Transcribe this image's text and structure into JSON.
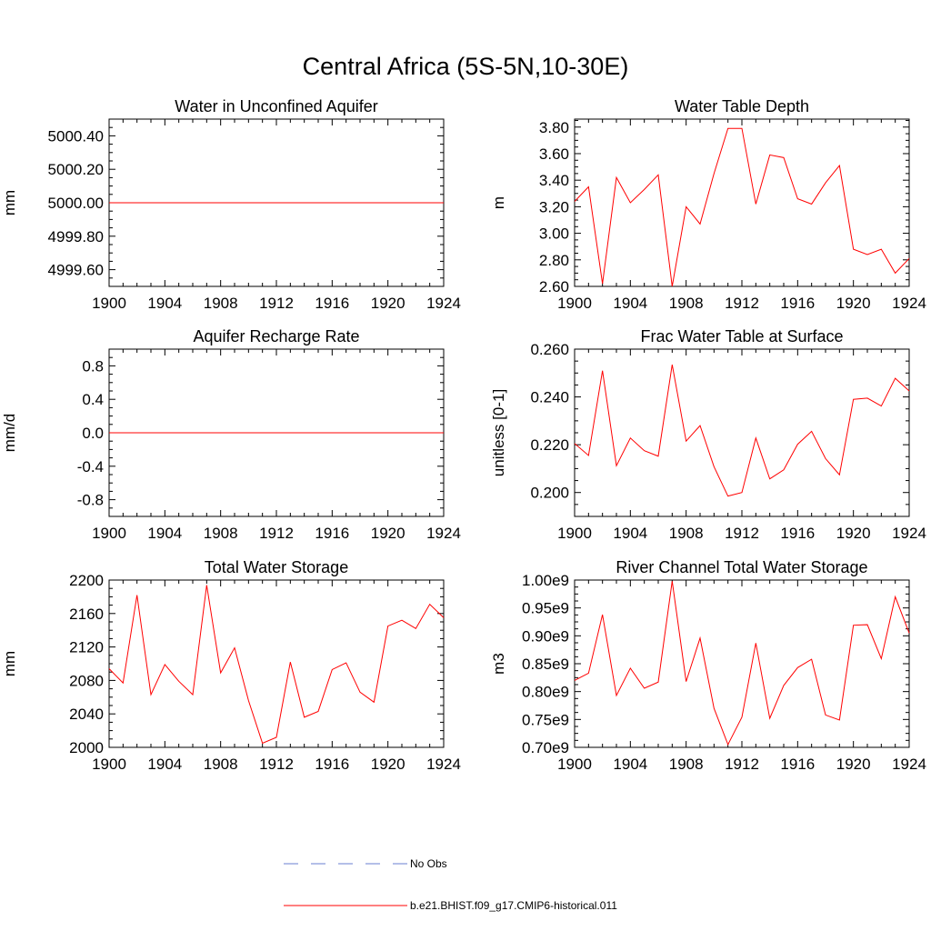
{
  "figure": {
    "title": "Central Africa (5S-5N,10-30E)",
    "series_color": "#ff0000",
    "noobs_color": "#6a7fd0"
  },
  "legend": {
    "entries": [
      {
        "label": "No Obs",
        "style": "dashed",
        "color": "#6a7fd0"
      },
      {
        "label": "b.e21.BHIST.f09_g17.CMIP6-historical.011",
        "style": "solid",
        "color": "#ff0000"
      }
    ]
  },
  "chart_data": [
    {
      "type": "line",
      "title": "Water in Unconfined Aquifer",
      "ylabel": "mm",
      "xlim": [
        1900,
        1924
      ],
      "ylim": [
        4999.5,
        5000.5
      ],
      "xticks": [
        1900,
        1904,
        1908,
        1912,
        1916,
        1920,
        1924
      ],
      "xtick_labels": [
        "1900",
        "1904",
        "1908",
        "1912",
        "1916",
        "1920",
        "1924"
      ],
      "yticks": [
        4999.6,
        4999.8,
        5000.0,
        5000.2,
        5000.4
      ],
      "ytick_labels": [
        "4999.60",
        "4999.80",
        "5000.00",
        "5000.20",
        "5000.40"
      ],
      "x": [
        1900,
        1901,
        1902,
        1903,
        1904,
        1905,
        1906,
        1907,
        1908,
        1909,
        1910,
        1911,
        1912,
        1913,
        1914,
        1915,
        1916,
        1917,
        1918,
        1919,
        1920,
        1921,
        1922,
        1923,
        1924
      ],
      "series": [
        {
          "values": [
            5000,
            5000,
            5000,
            5000,
            5000,
            5000,
            5000,
            5000,
            5000,
            5000,
            5000,
            5000,
            5000,
            5000,
            5000,
            5000,
            5000,
            5000,
            5000,
            5000,
            5000,
            5000,
            5000,
            5000,
            5000
          ]
        }
      ]
    },
    {
      "type": "line",
      "title": "Water Table Depth",
      "ylabel": "m",
      "xlim": [
        1900,
        1924
      ],
      "ylim": [
        2.6,
        3.86
      ],
      "xticks": [
        1900,
        1904,
        1908,
        1912,
        1916,
        1920,
        1924
      ],
      "xtick_labels": [
        "1900",
        "1904",
        "1908",
        "1912",
        "1916",
        "1920",
        "1924"
      ],
      "yticks": [
        2.6,
        2.8,
        3.0,
        3.2,
        3.4,
        3.6,
        3.8
      ],
      "ytick_labels": [
        "2.60",
        "2.80",
        "3.00",
        "3.20",
        "3.40",
        "3.60",
        "3.80"
      ],
      "x": [
        1900,
        1901,
        1902,
        1903,
        1904,
        1905,
        1906,
        1907,
        1908,
        1909,
        1910,
        1911,
        1912,
        1913,
        1914,
        1915,
        1916,
        1917,
        1918,
        1919,
        1920,
        1921,
        1922,
        1923,
        1924
      ],
      "series": [
        {
          "values": [
            3.24,
            3.35,
            2.62,
            3.42,
            3.23,
            3.33,
            3.44,
            2.6,
            3.2,
            3.07,
            3.45,
            3.79,
            3.79,
            3.22,
            3.59,
            3.57,
            3.26,
            3.22,
            3.38,
            3.51,
            2.88,
            2.84,
            2.88,
            2.7,
            2.81
          ]
        }
      ]
    },
    {
      "type": "line",
      "title": "Aquifer Recharge Rate",
      "ylabel": "mm/d",
      "xlim": [
        1900,
        1924
      ],
      "ylim": [
        -1.0,
        1.0
      ],
      "xticks": [
        1900,
        1904,
        1908,
        1912,
        1916,
        1920,
        1924
      ],
      "xtick_labels": [
        "1900",
        "1904",
        "1908",
        "1912",
        "1916",
        "1920",
        "1924"
      ],
      "yticks": [
        -0.8,
        -0.4,
        0.0,
        0.4,
        0.8
      ],
      "ytick_labels": [
        "-0.8",
        "-0.4",
        "0.0",
        "0.4",
        "0.8"
      ],
      "x": [
        1900,
        1901,
        1902,
        1903,
        1904,
        1905,
        1906,
        1907,
        1908,
        1909,
        1910,
        1911,
        1912,
        1913,
        1914,
        1915,
        1916,
        1917,
        1918,
        1919,
        1920,
        1921,
        1922,
        1923,
        1924
      ],
      "series": [
        {
          "values": [
            0,
            0,
            0,
            0,
            0,
            0,
            0,
            0,
            0,
            0,
            0,
            0,
            0,
            0,
            0,
            0,
            0,
            0,
            0,
            0,
            0,
            0,
            0,
            0,
            0
          ]
        }
      ]
    },
    {
      "type": "line",
      "title": "Frac Water Table at Surface",
      "ylabel": "unitless [0-1]",
      "xlim": [
        1900,
        1924
      ],
      "ylim": [
        0.19,
        0.26
      ],
      "xticks": [
        1900,
        1904,
        1908,
        1912,
        1916,
        1920,
        1924
      ],
      "xtick_labels": [
        "1900",
        "1904",
        "1908",
        "1912",
        "1916",
        "1920",
        "1924"
      ],
      "yticks": [
        0.2,
        0.22,
        0.24,
        0.26
      ],
      "ytick_labels": [
        "0.200",
        "0.220",
        "0.240",
        "0.260"
      ],
      "x": [
        1900,
        1901,
        1902,
        1903,
        1904,
        1905,
        1906,
        1907,
        1908,
        1909,
        1910,
        1911,
        1912,
        1913,
        1914,
        1915,
        1916,
        1917,
        1918,
        1919,
        1920,
        1921,
        1922,
        1923,
        1924
      ],
      "series": [
        {
          "values": [
            0.2205,
            0.2155,
            0.251,
            0.2112,
            0.2228,
            0.2175,
            0.2152,
            0.2535,
            0.2215,
            0.228,
            0.2108,
            0.1985,
            0.2,
            0.2228,
            0.2057,
            0.2095,
            0.2202,
            0.2256,
            0.2142,
            0.2074,
            0.239,
            0.2395,
            0.2362,
            0.2478,
            0.2425
          ]
        }
      ]
    },
    {
      "type": "line",
      "title": "Total Water Storage",
      "ylabel": "mm",
      "xlim": [
        1900,
        1924
      ],
      "ylim": [
        2000,
        2200
      ],
      "xticks": [
        1900,
        1904,
        1908,
        1912,
        1916,
        1920,
        1924
      ],
      "xtick_labels": [
        "1900",
        "1904",
        "1908",
        "1912",
        "1916",
        "1920",
        "1924"
      ],
      "yticks": [
        2000,
        2040,
        2080,
        2120,
        2160,
        2200
      ],
      "ytick_labels": [
        "2000",
        "2040",
        "2080",
        "2120",
        "2160",
        "2200"
      ],
      "x": [
        1900,
        1901,
        1902,
        1903,
        1904,
        1905,
        1906,
        1907,
        1908,
        1909,
        1910,
        1911,
        1912,
        1913,
        1914,
        1915,
        1916,
        1917,
        1918,
        1919,
        1920,
        1921,
        1922,
        1923,
        1924
      ],
      "series": [
        {
          "values": [
            2094,
            2077,
            2182,
            2063,
            2099,
            2079,
            2063,
            2194,
            2089,
            2119,
            2056,
            2005,
            2012,
            2102,
            2036,
            2043,
            2093,
            2101,
            2066,
            2054,
            2145,
            2152,
            2142,
            2171,
            2155
          ]
        }
      ]
    },
    {
      "type": "line",
      "title": "River Channel Total Water Storage",
      "ylabel": "m3",
      "xlim": [
        1900,
        1924
      ],
      "ylim": [
        700000000,
        1000000000
      ],
      "xticks": [
        1900,
        1904,
        1908,
        1912,
        1916,
        1920,
        1924
      ],
      "xtick_labels": [
        "1900",
        "1904",
        "1908",
        "1912",
        "1916",
        "1920",
        "1924"
      ],
      "yticks": [
        700000000,
        750000000,
        800000000,
        850000000,
        900000000,
        950000000,
        1000000000
      ],
      "ytick_labels": [
        "0.70e9",
        "0.75e9",
        "0.80e9",
        "0.85e9",
        "0.90e9",
        "0.95e9",
        "1.00e9"
      ],
      "x": [
        1900,
        1901,
        1902,
        1903,
        1904,
        1905,
        1906,
        1907,
        1908,
        1909,
        1910,
        1911,
        1912,
        1913,
        1914,
        1915,
        1916,
        1917,
        1918,
        1919,
        1920,
        1921,
        1922,
        1923,
        1924
      ],
      "series": [
        {
          "values": [
            820000000,
            833000000,
            938000000,
            793000000,
            842000000,
            806000000,
            817000000,
            998000000,
            818000000,
            896000000,
            770000000,
            705000000,
            754000000,
            887000000,
            752000000,
            811000000,
            843000000,
            858000000,
            758000000,
            749000000,
            919000000,
            920000000,
            859000000,
            970000000,
            905000000
          ]
        }
      ]
    }
  ]
}
